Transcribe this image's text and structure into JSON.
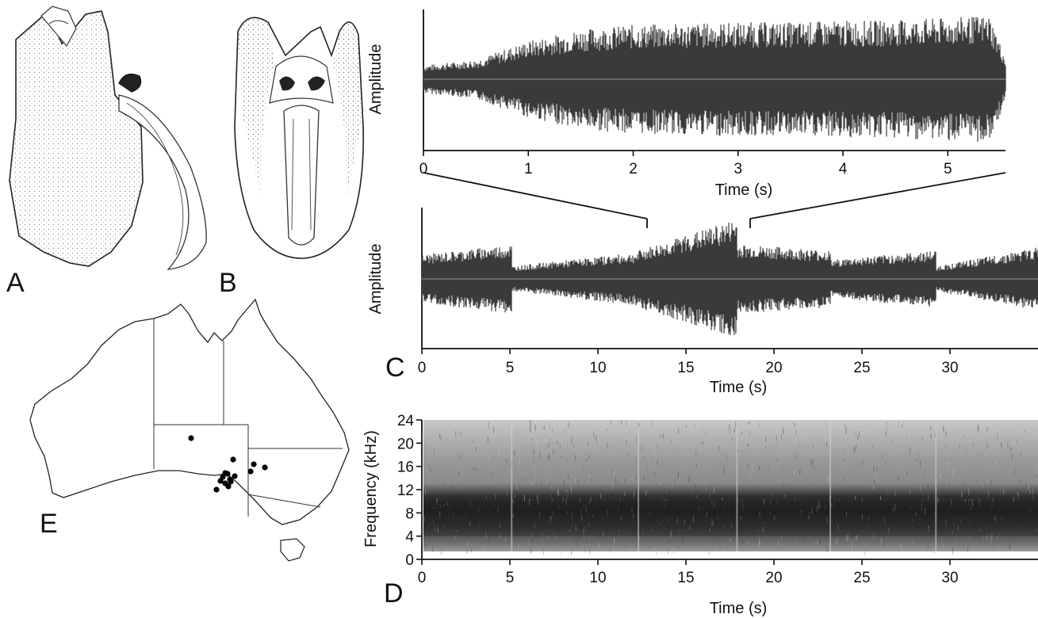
{
  "panels": {
    "A": {
      "label": "A"
    },
    "B": {
      "label": "B"
    },
    "C": {
      "label": "C"
    },
    "D": {
      "label": "D"
    },
    "E": {
      "label": "E"
    }
  },
  "chart_data": [
    {
      "id": "waveform-top",
      "type": "area",
      "xlabel": "Time (s)",
      "ylabel": "Amplitude",
      "xlim": [
        0,
        5.55
      ],
      "x_ticks": [
        "0",
        "1",
        "2",
        "3",
        "4",
        "5"
      ],
      "x": [
        0,
        0.5,
        1.0,
        1.5,
        2.0,
        2.5,
        3.0,
        3.5,
        4.0,
        4.5,
        5.0,
        5.4,
        5.55
      ],
      "envelope": [
        0.2,
        0.28,
        0.55,
        0.72,
        0.78,
        0.8,
        0.82,
        0.82,
        0.84,
        0.85,
        0.88,
        0.92,
        0.3
      ],
      "color": "#3a3a3a"
    },
    {
      "id": "waveform-middle",
      "type": "area",
      "xlabel": "Time (s)",
      "ylabel": "Amplitude",
      "xlim": [
        0,
        35
      ],
      "x_ticks": [
        "0",
        "5",
        "10",
        "15",
        "20",
        "25",
        "30"
      ],
      "segments": [
        {
          "start": 0.0,
          "end": 5.1,
          "amp_start": 0.38,
          "amp_end": 0.55
        },
        {
          "start": 5.1,
          "end": 12.3,
          "amp_start": 0.2,
          "amp_end": 0.42
        },
        {
          "start": 12.3,
          "end": 17.9,
          "amp_start": 0.45,
          "amp_end": 0.95
        },
        {
          "start": 17.9,
          "end": 23.2,
          "amp_start": 0.55,
          "amp_end": 0.45
        },
        {
          "start": 23.2,
          "end": 29.2,
          "amp_start": 0.3,
          "amp_end": 0.45
        },
        {
          "start": 29.2,
          "end": 35.0,
          "amp_start": 0.2,
          "amp_end": 0.5
        }
      ],
      "zoom_from": [
        12.5,
        17.9
      ],
      "color": "#3a3a3a"
    },
    {
      "id": "spectrogram",
      "type": "heatmap",
      "xlabel": "Time (s)",
      "ylabel": "Frequency (kHz)",
      "xlim": [
        0,
        35
      ],
      "ylim": [
        0,
        24
      ],
      "x_ticks": [
        "0",
        "5",
        "10",
        "15",
        "20",
        "25",
        "30"
      ],
      "y_ticks": [
        "0",
        "4",
        "8",
        "12",
        "16",
        "20",
        "24"
      ],
      "dark_band_khz": [
        4,
        10
      ],
      "segment_boundaries": [
        5.1,
        12.3,
        17.9,
        23.2,
        29.2
      ]
    }
  ],
  "map": {
    "points": [
      [
        241,
        553
      ],
      [
        294,
        580
      ],
      [
        320,
        586
      ],
      [
        334,
        590
      ],
      [
        316,
        595
      ],
      [
        284,
        597
      ],
      [
        281,
        602
      ],
      [
        287,
        598
      ],
      [
        290,
        605
      ],
      [
        296,
        601
      ],
      [
        278,
        607
      ],
      [
        284,
        610
      ],
      [
        291,
        608
      ],
      [
        273,
        618
      ],
      [
        288,
        614
      ]
    ]
  }
}
